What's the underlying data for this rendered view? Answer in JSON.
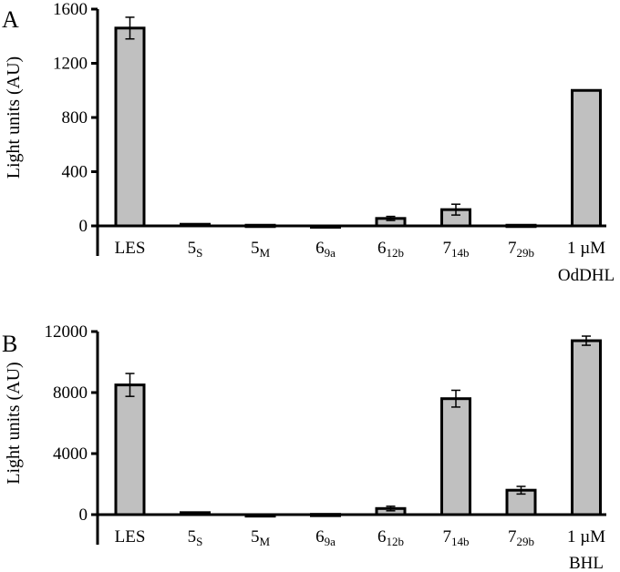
{
  "chart_data": [
    {
      "panel": "A",
      "type": "bar",
      "ylabel": "Light units (AU)",
      "ylim": [
        0,
        1600
      ],
      "yticks": [
        "0",
        "400",
        "800",
        "1200",
        "1600"
      ],
      "categories": [
        {
          "main": "LES",
          "sub": ""
        },
        {
          "main": "5",
          "sub": "S"
        },
        {
          "main": "5",
          "sub": "M"
        },
        {
          "main": "6",
          "sub": "9a"
        },
        {
          "main": "6",
          "sub": "12b"
        },
        {
          "main": "7",
          "sub": "14b"
        },
        {
          "main": "7",
          "sub": "29b"
        },
        {
          "main": "1 µM",
          "sub": "",
          "line2": "OdDHL"
        }
      ],
      "values": [
        1460,
        12,
        5,
        -5,
        55,
        120,
        5,
        1000
      ],
      "errors": [
        80,
        0,
        0,
        0,
        15,
        40,
        0,
        0
      ]
    },
    {
      "panel": "B",
      "type": "bar",
      "ylabel": "Light units (AU)",
      "ylim": [
        0,
        12000
      ],
      "yticks": [
        "0",
        "4000",
        "8000",
        "12000"
      ],
      "categories": [
        {
          "main": "LES",
          "sub": ""
        },
        {
          "main": "5",
          "sub": "S"
        },
        {
          "main": "5",
          "sub": "M"
        },
        {
          "main": "6",
          "sub": "9a"
        },
        {
          "main": "6",
          "sub": "12b"
        },
        {
          "main": "7",
          "sub": "14b"
        },
        {
          "main": "7",
          "sub": "29b"
        },
        {
          "main": "1 µM",
          "sub": "",
          "line2": "BHL"
        }
      ],
      "values": [
        8500,
        130,
        -100,
        20,
        400,
        7600,
        1600,
        11400
      ],
      "errors": [
        750,
        0,
        0,
        0,
        150,
        550,
        250,
        300
      ]
    }
  ]
}
